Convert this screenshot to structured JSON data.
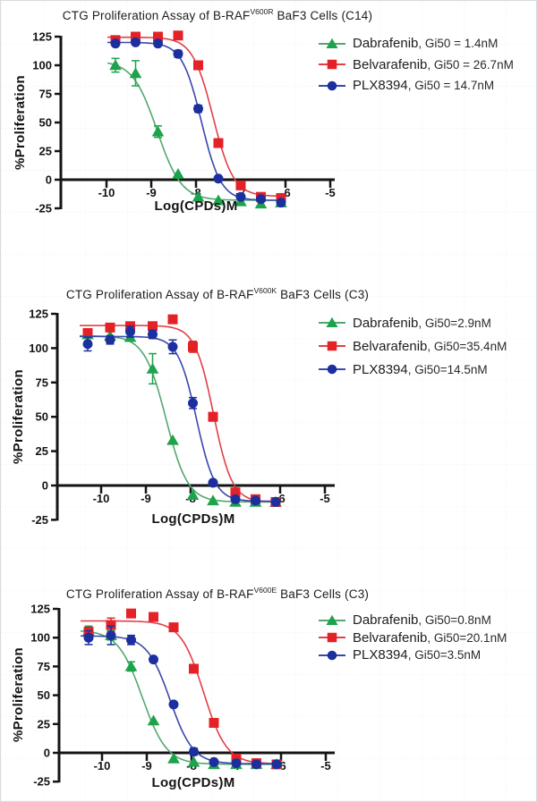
{
  "figure": {
    "description": "Three CTG proliferation dose-response charts for B-RAF mutant BaF3 cells"
  },
  "colors": {
    "dabrafenib_green": "#1CA34B",
    "belvarafenib_red": "#E32127",
    "plx8394_blue": "#1C2F9E"
  },
  "chart_data": [
    {
      "type": "scatter",
      "title_prefix": "CTG Proliferation Assay of B-RAF",
      "title_sup": "V600R",
      "title_suffix": " BaF3 Cells (C14)",
      "xlabel": "Log(CPDs)M",
      "ylabel": "%Proliferation",
      "xlim": [
        -10.6,
        -4.85
      ],
      "ylim": [
        -25,
        125
      ],
      "xticks": [
        -10,
        -9,
        -8,
        -7,
        -6,
        -5
      ],
      "yticks": [
        -25,
        0,
        25,
        50,
        75,
        100,
        125
      ],
      "grid": false,
      "legend_position": "right",
      "x": [
        -9.8,
        -9.35,
        -8.85,
        -8.4,
        -7.95,
        -7.5,
        -7.0,
        -6.55,
        -6.1
      ],
      "series": [
        {
          "name": "Dabrafenib",
          "legend_suffix": ", Gi50 = 1.4nM",
          "marker": "triangle",
          "color": "#1CA34B",
          "line_color": "#52A86C",
          "values": [
            100,
            93,
            42,
            5,
            -15,
            -18,
            -19,
            -21,
            -20
          ],
          "errors": [
            6,
            11,
            5,
            0,
            0,
            0,
            0,
            0,
            0
          ],
          "fit": {
            "top": 104,
            "bottom": -18,
            "logec50": -8.87,
            "hill": 1.6
          }
        },
        {
          "name": "Belvarafenib",
          "legend_suffix": ", Gi50 = 26.7nM",
          "marker": "square",
          "color": "#E32127",
          "line_color": "#E04046",
          "values": [
            122,
            125,
            125,
            126,
            100,
            32,
            -5,
            -15,
            -16
          ],
          "errors": [
            0,
            0,
            0,
            0,
            0,
            0,
            0,
            0,
            0
          ],
          "fit": {
            "top": 124.5,
            "bottom": -14.5,
            "logec50": -7.62,
            "hill": 1.9
          }
        },
        {
          "name": "PLX8394",
          "legend_suffix": ", Gi50 = 14.7nM",
          "marker": "circle",
          "color": "#1C2F9E",
          "line_color": "#3A47AC",
          "values": [
            119,
            120,
            119,
            110,
            62,
            1,
            -15,
            -17,
            -20
          ],
          "errors": [
            0,
            0,
            0,
            3,
            3,
            0,
            0,
            0,
            0
          ],
          "fit": {
            "top": 120,
            "bottom": -18,
            "logec50": -7.88,
            "hill": 2.0
          }
        }
      ]
    },
    {
      "type": "scatter",
      "title_prefix": "CTG Proliferation Assay of B-RAF",
      "title_sup": "V600K",
      "title_suffix": " BaF3 Cells (C3)",
      "xlabel": "Log(CPDs)M",
      "ylabel": "%Proliferation",
      "xlim": [
        -10.6,
        -4.85
      ],
      "ylim": [
        -25,
        125
      ],
      "xticks": [
        -10,
        -9,
        -8,
        -7,
        -6,
        -5
      ],
      "yticks": [
        -25,
        0,
        25,
        50,
        75,
        100,
        125
      ],
      "grid": false,
      "legend_position": "right",
      "x": [
        -10.3,
        -9.8,
        -9.35,
        -8.85,
        -8.4,
        -7.95,
        -7.5,
        -7.0,
        -6.55,
        -6.1
      ],
      "series": [
        {
          "name": "Dabrafenib",
          "legend_suffix": ", Gi50=2.9nM",
          "marker": "triangle",
          "color": "#1CA34B",
          "line_color": "#52A86C",
          "values": [
            110,
            109,
            108,
            85,
            33,
            -7,
            -11,
            -12,
            -12,
            -12
          ],
          "errors": [
            0,
            0,
            0,
            11,
            0,
            0,
            0,
            0,
            0,
            0
          ],
          "fit": {
            "top": 109,
            "bottom": -12,
            "logec50": -8.55,
            "hill": 1.8
          }
        },
        {
          "name": "Belvarafenib",
          "legend_suffix": ", Gi50=35.4nM",
          "marker": "square",
          "color": "#E32127",
          "line_color": "#E04046",
          "values": [
            111,
            115,
            116,
            116,
            121,
            101,
            50,
            -5,
            -10,
            -12
          ],
          "errors": [
            3,
            2,
            3,
            3,
            0,
            4,
            3,
            0,
            0,
            0
          ],
          "fit": {
            "top": 116.5,
            "bottom": -12,
            "logec50": -7.49,
            "hill": 2.1
          }
        },
        {
          "name": "PLX8394",
          "legend_suffix": ", Gi50=14.5nM",
          "marker": "circle",
          "color": "#1C2F9E",
          "line_color": "#3A47AC",
          "values": [
            103,
            106,
            112,
            110,
            101,
            60,
            2,
            -10,
            -11,
            -12
          ],
          "errors": [
            5,
            3,
            4,
            3,
            5,
            4,
            0,
            0,
            0,
            0
          ],
          "fit": {
            "top": 108.5,
            "bottom": -11.5,
            "logec50": -7.87,
            "hill": 2.1
          }
        }
      ]
    },
    {
      "type": "scatter",
      "title_prefix": "CTG Proliferation Assay of B-RAF",
      "title_sup": "V600E",
      "title_suffix": " BaF3 Cells (C3)",
      "xlabel": "Log(CPDs)M",
      "ylabel": "%Proliferation",
      "xlim": [
        -10.6,
        -4.85
      ],
      "ylim": [
        -25,
        125
      ],
      "xticks": [
        -10,
        -9,
        -8,
        -7,
        -6,
        -5
      ],
      "yticks": [
        -25,
        0,
        25,
        50,
        75,
        100,
        125
      ],
      "grid": false,
      "legend_position": "right",
      "x": [
        -10.3,
        -9.8,
        -9.35,
        -8.85,
        -8.4,
        -7.95,
        -7.5,
        -7.0,
        -6.55,
        -6.1
      ],
      "series": [
        {
          "name": "Dabrafenib",
          "legend_suffix": ", Gi50=0.8nM",
          "marker": "triangle",
          "color": "#1CA34B",
          "line_color": "#52A86C",
          "values": [
            106,
            102,
            75,
            28,
            -5,
            -8,
            -10,
            -10,
            -10,
            -10
          ],
          "errors": [
            4,
            4,
            4,
            0,
            0,
            0,
            0,
            0,
            0,
            0
          ],
          "fit": {
            "top": 106.5,
            "bottom": -10,
            "logec50": -9.1,
            "hill": 1.6
          }
        },
        {
          "name": "Belvarafenib",
          "legend_suffix": ", Gi50=20.1nM",
          "marker": "square",
          "color": "#E32127",
          "line_color": "#E04046",
          "values": [
            105,
            111,
            121,
            118,
            109,
            73,
            26,
            -5,
            -9,
            -10
          ],
          "errors": [
            4,
            6,
            0,
            0,
            0,
            3,
            0,
            0,
            0,
            0
          ],
          "fit": {
            "top": 114.5,
            "bottom": -9.5,
            "logec50": -7.73,
            "hill": 1.7
          }
        },
        {
          "name": "PLX8394",
          "legend_suffix": ", Gi50=3.5nM",
          "marker": "circle",
          "color": "#1C2F9E",
          "line_color": "#3A47AC",
          "values": [
            100,
            102,
            98,
            81,
            42,
            1,
            -8,
            -9,
            -10,
            -10
          ],
          "errors": [
            6,
            8,
            4,
            0,
            0,
            3,
            0,
            0,
            0,
            0
          ],
          "fit": {
            "top": 101.5,
            "bottom": -9.5,
            "logec50": -8.48,
            "hill": 1.7
          }
        }
      ]
    }
  ]
}
